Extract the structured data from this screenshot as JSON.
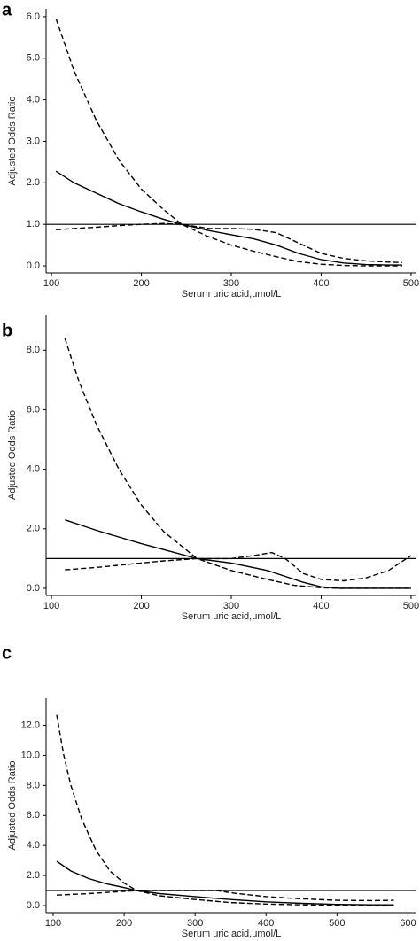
{
  "chart_data": [
    {
      "type": "line",
      "label": "a",
      "ylabel": "Adjusted Odds Ratio",
      "xlabel": "Serum uric acid,umol/L",
      "xlim": [
        94,
        506
      ],
      "ylim": [
        -0.17,
        6.19
      ],
      "xticks": [
        100,
        200,
        300,
        400,
        500
      ],
      "yticks": [
        {
          "value": 0,
          "label": "0.0"
        },
        {
          "value": 1,
          "label": "1.0"
        },
        {
          "value": 2,
          "label": "2.0"
        },
        {
          "value": 3,
          "label": "3.0"
        },
        {
          "value": 4,
          "label": "4.0"
        },
        {
          "value": 5,
          "label": "5.0"
        },
        {
          "value": 6,
          "label": "6.0"
        }
      ],
      "reference_line": 1,
      "series": [
        {
          "color": "#000000",
          "dash": false,
          "x": [
            105,
            125,
            150,
            175,
            200,
            225,
            245,
            275,
            300,
            325,
            350,
            375,
            400,
            425,
            450,
            475,
            490
          ],
          "values": [
            2.28,
            2.0,
            1.75,
            1.5,
            1.3,
            1.12,
            1.0,
            0.85,
            0.75,
            0.65,
            0.5,
            0.3,
            0.15,
            0.07,
            0.03,
            0.02,
            0.02
          ]
        },
        {
          "color": "#000000",
          "dash": true,
          "x": [
            105,
            125,
            150,
            175,
            200,
            225,
            245,
            275,
            300,
            325,
            350,
            375,
            400,
            425,
            450,
            475,
            490
          ],
          "values": [
            5.95,
            4.7,
            3.5,
            2.55,
            1.85,
            1.35,
            1.0,
            0.9,
            0.9,
            0.88,
            0.8,
            0.55,
            0.3,
            0.18,
            0.12,
            0.09,
            0.08
          ]
        },
        {
          "color": "#000000",
          "dash": true,
          "x": [
            105,
            125,
            150,
            175,
            200,
            225,
            245,
            275,
            300,
            325,
            350,
            375,
            400,
            425,
            450,
            475,
            490
          ],
          "values": [
            0.87,
            0.9,
            0.93,
            0.97,
            1.0,
            1.02,
            1.0,
            0.7,
            0.5,
            0.35,
            0.22,
            0.1,
            0.04,
            0.01,
            0.0,
            0.0,
            0.0
          ]
        }
      ]
    },
    {
      "type": "line",
      "label": "b",
      "ylabel": "Adjusted Odds Ratio",
      "xlabel": "Serum uric acid,umol/L",
      "xlim": [
        94,
        506
      ],
      "ylim": [
        -0.24,
        9.2
      ],
      "xticks": [
        100,
        200,
        300,
        400,
        500
      ],
      "yticks": [
        {
          "value": 0,
          "label": "0.0"
        },
        {
          "value": 2,
          "label": "2.0"
        },
        {
          "value": 4,
          "label": "4.0"
        },
        {
          "value": 6,
          "label": "6.0"
        },
        {
          "value": 8,
          "label": "8.0"
        }
      ],
      "reference_line": 1,
      "series": [
        {
          "color": "#000000",
          "dash": false,
          "x": [
            115,
            150,
            200,
            225,
            262,
            300,
            340,
            360,
            380,
            400,
            420,
            450,
            500
          ],
          "values": [
            2.3,
            1.95,
            1.5,
            1.3,
            1.0,
            0.85,
            0.6,
            0.4,
            0.2,
            0.05,
            0.0,
            0.0,
            0.0
          ]
        },
        {
          "color": "#000000",
          "dash": true,
          "x": [
            115,
            130,
            150,
            175,
            200,
            225,
            262,
            300,
            325,
            345,
            360,
            380,
            400,
            425,
            450,
            475,
            500
          ],
          "values": [
            8.4,
            7.0,
            5.5,
            4.0,
            2.8,
            1.9,
            1.0,
            1.0,
            1.1,
            1.2,
            1.0,
            0.5,
            0.3,
            0.25,
            0.35,
            0.6,
            1.1
          ]
        },
        {
          "color": "#000000",
          "dash": true,
          "x": [
            115,
            150,
            200,
            225,
            262,
            300,
            340,
            370,
            400,
            420,
            450,
            500
          ],
          "values": [
            0.62,
            0.7,
            0.85,
            0.92,
            1.0,
            0.6,
            0.3,
            0.1,
            0.02,
            0.0,
            0.0,
            0.0
          ]
        }
      ]
    },
    {
      "type": "line",
      "label": "c",
      "ylabel": "Adjusted Odds Ratio",
      "xlabel": "Serum uric acid,umol/L",
      "xlim": [
        90,
        612
      ],
      "ylim": [
        -0.47,
        13.8
      ],
      "xticks": [
        100,
        200,
        300,
        400,
        500,
        600
      ],
      "yticks": [
        {
          "value": 0,
          "label": "0.0"
        },
        {
          "value": 2,
          "label": "2.0"
        },
        {
          "value": 4,
          "label": "4.0"
        },
        {
          "value": 6,
          "label": "6.0"
        },
        {
          "value": 8,
          "label": "8.0"
        },
        {
          "value": 10,
          "label": "10.0"
        },
        {
          "value": 12,
          "label": "12.0"
        }
      ],
      "reference_line": 1,
      "series": [
        {
          "color": "#000000",
          "dash": false,
          "x": [
            105,
            125,
            150,
            175,
            200,
            218,
            250,
            300,
            350,
            400,
            450,
            500,
            550,
            580
          ],
          "values": [
            2.95,
            2.3,
            1.8,
            1.45,
            1.2,
            1.0,
            0.8,
            0.6,
            0.4,
            0.25,
            0.15,
            0.08,
            0.05,
            0.05
          ]
        },
        {
          "color": "#000000",
          "dash": true,
          "x": [
            105,
            115,
            125,
            140,
            160,
            180,
            200,
            218,
            250,
            300,
            330,
            360,
            400,
            450,
            500,
            550,
            580
          ],
          "values": [
            12.7,
            10.0,
            8.0,
            5.8,
            3.7,
            2.3,
            1.5,
            1.0,
            1.0,
            1.0,
            1.0,
            0.8,
            0.6,
            0.45,
            0.35,
            0.33,
            0.35
          ]
        },
        {
          "color": "#000000",
          "dash": true,
          "x": [
            105,
            150,
            200,
            218,
            250,
            300,
            350,
            400,
            450,
            500,
            550,
            580
          ],
          "values": [
            0.7,
            0.8,
            0.95,
            1.0,
            0.65,
            0.4,
            0.2,
            0.1,
            0.05,
            0.02,
            0.0,
            0.0
          ]
        }
      ]
    }
  ]
}
